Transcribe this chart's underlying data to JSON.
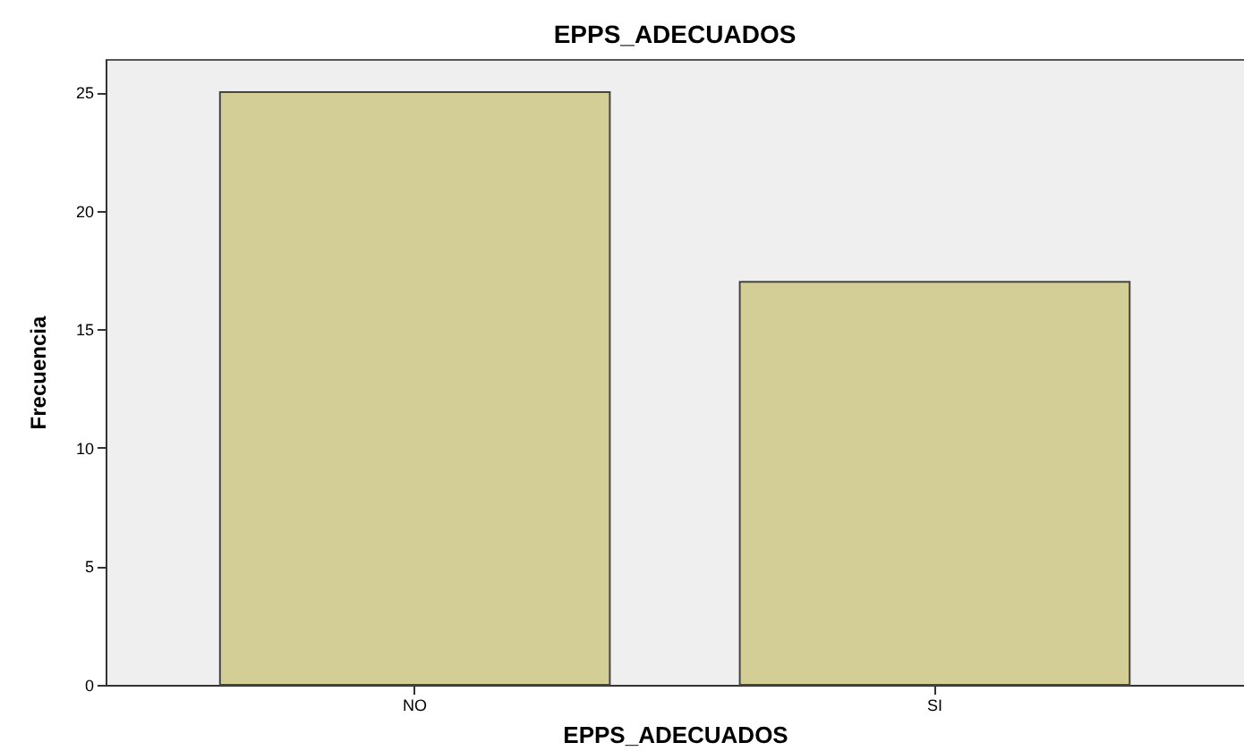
{
  "chart_data": {
    "type": "bar",
    "title": "EPPS_ADECUADOS",
    "xlabel": "EPPS_ADECUADOS",
    "ylabel": "Frecuencia",
    "categories": [
      "NO",
      "SI"
    ],
    "values": [
      25,
      17
    ],
    "color": "#d3cd96",
    "ylim": [
      0,
      26.4
    ],
    "yticks": [
      0,
      5,
      10,
      15,
      20,
      25
    ],
    "grid": false
  }
}
